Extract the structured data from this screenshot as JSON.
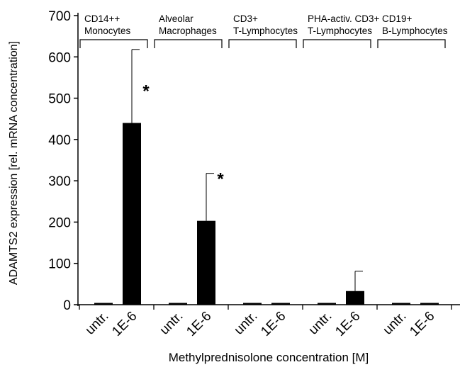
{
  "chart_data": {
    "type": "bar",
    "xlabel": "Methylprednisolone concentration [M]",
    "ylabel": "ADAMTS2 expression [rel. mRNA concentration]",
    "ylim": [
      0,
      700
    ],
    "yticks": [
      0,
      100,
      200,
      300,
      400,
      500,
      600,
      700
    ],
    "grid": false,
    "legend": "none",
    "bar_color": "#000000",
    "groups": [
      {
        "label_line1": "CD14++",
        "label_line2": "Monocytes",
        "categories": [
          "untr.",
          "1E-6"
        ],
        "values": [
          2,
          440
        ],
        "errors": [
          0,
          178
        ],
        "annotations": [
          "",
          "*"
        ]
      },
      {
        "label_line1": "Alveolar",
        "label_line2": "Macrophages",
        "categories": [
          "untr.",
          "1E-6"
        ],
        "values": [
          2,
          203
        ],
        "errors": [
          0,
          115
        ],
        "annotations": [
          "",
          "*"
        ]
      },
      {
        "label_line1": "CD3+",
        "label_line2": "T-Lymphocytes",
        "categories": [
          "untr.",
          "1E-6"
        ],
        "values": [
          2,
          3
        ],
        "errors": [
          0,
          0
        ],
        "annotations": [
          "",
          ""
        ]
      },
      {
        "label_line1": "PHA-activ. CD3+",
        "label_line2": "T-Lymphocytes",
        "categories": [
          "untr.",
          "1E-6"
        ],
        "values": [
          2,
          33
        ],
        "errors": [
          0,
          48
        ],
        "annotations": [
          "",
          ""
        ]
      },
      {
        "label_line1": "CD19+",
        "label_line2": "B-Lymphocytes",
        "categories": [
          "untr.",
          "1E-6"
        ],
        "values": [
          2,
          2
        ],
        "errors": [
          0,
          0
        ],
        "annotations": [
          "",
          ""
        ]
      }
    ]
  }
}
